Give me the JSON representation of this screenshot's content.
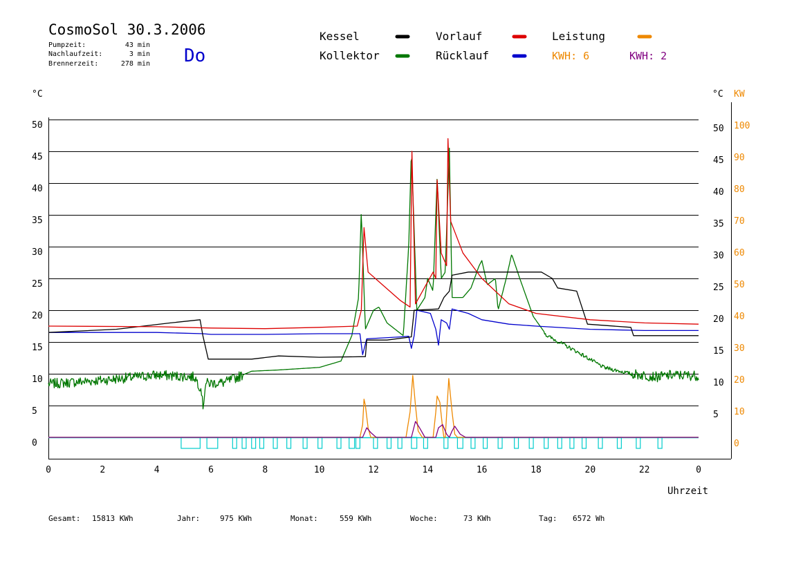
{
  "header": {
    "title": "CosmoSol 30.3.2006",
    "day": "Do",
    "stats": [
      {
        "label": "Pumpzeit:",
        "value": "43 min"
      },
      {
        "label": "Nachlaufzeit:",
        "value": "3 min"
      },
      {
        "label": "Brennerzeit:",
        "value": "278 min"
      }
    ]
  },
  "legend": {
    "kessel": "Kessel",
    "vorlauf": "Vorlauf",
    "leistung": "Leistung",
    "kollektor": "Kollektor",
    "ruecklauf": "Rücklauf",
    "kwh_orange": "KWH: 6",
    "kwh_purple": "KWH: 2"
  },
  "axes": {
    "y_left_unit": "°C",
    "y_right_unit": "°C",
    "y_right_unit2": "KW",
    "x_label": "Uhrzeit"
  },
  "footer": {
    "items": [
      {
        "label": "Gesamt:",
        "value": "15813 KWh"
      },
      {
        "label": "Jahr:",
        "value": "975 KWh"
      },
      {
        "label": "Monat:",
        "value": "559 KWh"
      },
      {
        "label": "Woche:",
        "value": "73 KWh"
      },
      {
        "label": "Tag:",
        "value": "6572 Wh"
      }
    ]
  },
  "colors": {
    "kessel": "#000000",
    "vorlauf": "#dd0000",
    "leistung": "#ee8800",
    "kollektor": "#007700",
    "ruecklauf": "#0000cc",
    "kwh_purple": "#800080",
    "pump": "#00cccc",
    "day": "#0000cc"
  },
  "chart_data": {
    "type": "line",
    "x_ticks": [
      "0",
      "2",
      "4",
      "6",
      "8",
      "10",
      "12",
      "14",
      "16",
      "18",
      "20",
      "22",
      "0"
    ],
    "xlim": [
      0,
      24
    ],
    "y_left_ticks": [
      "0",
      "5",
      "10",
      "15",
      "20",
      "25",
      "30",
      "35",
      "40",
      "45",
      "50"
    ],
    "y_right_ticks": [
      "5",
      "10",
      "15",
      "20",
      "25",
      "30",
      "35",
      "40",
      "45",
      "50"
    ],
    "y_right2_ticks": [
      "0",
      "10",
      "20",
      "30",
      "40",
      "50",
      "60",
      "70",
      "80",
      "90",
      "100"
    ],
    "ylim": [
      0,
      50
    ],
    "ylim_kw": [
      0,
      100
    ],
    "grid": true,
    "series": [
      {
        "name": "Kessel",
        "key": "kessel",
        "points": [
          [
            0,
            16.5
          ],
          [
            2.5,
            17
          ],
          [
            4.5,
            18
          ],
          [
            5.6,
            18.5
          ],
          [
            5.7,
            16
          ],
          [
            5.9,
            12.3
          ],
          [
            7.5,
            12.3
          ],
          [
            8.5,
            12.8
          ],
          [
            10,
            12.6
          ],
          [
            11.7,
            12.7
          ],
          [
            11.75,
            15.3
          ],
          [
            12.5,
            15.3
          ],
          [
            13.4,
            15.8
          ],
          [
            13.5,
            20
          ],
          [
            14.4,
            20.2
          ],
          [
            14.6,
            22
          ],
          [
            14.8,
            23
          ],
          [
            14.9,
            25.5
          ],
          [
            15.5,
            26
          ],
          [
            18.2,
            26
          ],
          [
            18.6,
            25
          ],
          [
            18.8,
            23.5
          ],
          [
            19.5,
            23
          ],
          [
            19.9,
            17.8
          ],
          [
            21.5,
            17.3
          ],
          [
            21.6,
            16
          ],
          [
            24,
            16
          ]
        ]
      },
      {
        "name": "Vorlauf",
        "key": "vorlauf",
        "points": [
          [
            0,
            17.5
          ],
          [
            4,
            17.4
          ],
          [
            6,
            17.2
          ],
          [
            8,
            17.1
          ],
          [
            10,
            17.3
          ],
          [
            11.4,
            17.5
          ],
          [
            11.55,
            20
          ],
          [
            11.65,
            33
          ],
          [
            11.8,
            26
          ],
          [
            12.2,
            24.5
          ],
          [
            13,
            21.5
          ],
          [
            13.35,
            20.5
          ],
          [
            13.42,
            45
          ],
          [
            13.55,
            21
          ],
          [
            14.2,
            26
          ],
          [
            14.3,
            25
          ],
          [
            14.35,
            40.5
          ],
          [
            14.5,
            29
          ],
          [
            14.7,
            27
          ],
          [
            14.75,
            47
          ],
          [
            14.85,
            34
          ],
          [
            15.3,
            29
          ],
          [
            16,
            25
          ],
          [
            17,
            21
          ],
          [
            18,
            19.5
          ],
          [
            20,
            18.5
          ],
          [
            22,
            18
          ],
          [
            24,
            17.8
          ]
        ]
      },
      {
        "name": "Kollektor",
        "key": "kollektor",
        "noise": true,
        "points": [
          [
            0,
            8.4
          ],
          [
            2,
            9
          ],
          [
            4,
            9.8
          ],
          [
            5.4,
            9.5
          ],
          [
            5.65,
            7.5
          ],
          [
            5.7,
            4.5
          ],
          [
            5.8,
            8.5
          ],
          [
            6.5,
            8.6
          ],
          [
            7.5,
            10.4
          ],
          [
            8.5,
            10.6
          ],
          [
            10,
            11
          ],
          [
            10.8,
            12
          ],
          [
            11.2,
            16
          ],
          [
            11.45,
            22
          ],
          [
            11.55,
            35.5
          ],
          [
            11.7,
            17
          ],
          [
            12,
            20
          ],
          [
            12.2,
            20.5
          ],
          [
            12.5,
            18
          ],
          [
            13.1,
            16
          ],
          [
            13.3,
            30
          ],
          [
            13.4,
            45.5
          ],
          [
            13.6,
            20
          ],
          [
            13.9,
            22
          ],
          [
            14,
            25
          ],
          [
            14.2,
            23
          ],
          [
            14.35,
            41
          ],
          [
            14.5,
            25
          ],
          [
            14.65,
            26
          ],
          [
            14.8,
            45.5
          ],
          [
            14.9,
            22
          ],
          [
            15.3,
            22
          ],
          [
            15.6,
            23.5
          ],
          [
            15.9,
            27
          ],
          [
            16,
            27.8
          ],
          [
            16.2,
            24
          ],
          [
            16.5,
            25
          ],
          [
            16.6,
            20
          ],
          [
            16.9,
            25
          ],
          [
            17.1,
            28.8
          ],
          [
            17.4,
            25
          ],
          [
            17.9,
            19
          ],
          [
            18.4,
            16
          ],
          [
            19.5,
            13.5
          ],
          [
            20.5,
            11
          ],
          [
            21.5,
            10
          ],
          [
            22.5,
            9.5
          ],
          [
            23,
            9.8
          ],
          [
            24,
            9.7
          ]
        ]
      },
      {
        "name": "Rücklauf",
        "key": "ruecklauf",
        "points": [
          [
            0,
            16.5
          ],
          [
            4,
            16.5
          ],
          [
            5.7,
            16.3
          ],
          [
            6,
            16.2
          ],
          [
            8,
            16.2
          ],
          [
            10,
            16.3
          ],
          [
            11.5,
            16.3
          ],
          [
            11.6,
            13
          ],
          [
            11.75,
            15.5
          ],
          [
            13,
            15.8
          ],
          [
            13.3,
            15.9
          ],
          [
            13.4,
            14
          ],
          [
            13.5,
            16
          ],
          [
            13.6,
            20
          ],
          [
            14.1,
            19.5
          ],
          [
            14.3,
            17
          ],
          [
            14.4,
            14.5
          ],
          [
            14.5,
            18.5
          ],
          [
            14.7,
            18
          ],
          [
            14.8,
            17
          ],
          [
            14.9,
            20.2
          ],
          [
            15.5,
            19.5
          ],
          [
            16,
            18.5
          ],
          [
            17,
            17.8
          ],
          [
            18,
            17.5
          ],
          [
            20,
            17
          ],
          [
            22,
            16.8
          ],
          [
            24,
            16.8
          ]
        ]
      },
      {
        "name": "Leistung",
        "key": "leistung",
        "unit": "KW",
        "points": [
          [
            0,
            0
          ],
          [
            11.5,
            0
          ],
          [
            11.6,
            4
          ],
          [
            11.65,
            12
          ],
          [
            11.7,
            10
          ],
          [
            11.8,
            3
          ],
          [
            11.9,
            0
          ],
          [
            13.2,
            0
          ],
          [
            13.35,
            8
          ],
          [
            13.45,
            19.5
          ],
          [
            13.55,
            10
          ],
          [
            13.65,
            2
          ],
          [
            13.8,
            0
          ],
          [
            14.2,
            0
          ],
          [
            14.3,
            8
          ],
          [
            14.35,
            13
          ],
          [
            14.45,
            11
          ],
          [
            14.55,
            3
          ],
          [
            14.6,
            0
          ],
          [
            14.65,
            0
          ],
          [
            14.72,
            10
          ],
          [
            14.78,
            18.5
          ],
          [
            14.9,
            8
          ],
          [
            15,
            1
          ],
          [
            15.1,
            0
          ],
          [
            24,
            0
          ]
        ]
      },
      {
        "name": "KWH",
        "key": "kwh_purple",
        "unit": "KW",
        "points": [
          [
            0,
            0
          ],
          [
            11.6,
            0
          ],
          [
            11.7,
            2
          ],
          [
            11.75,
            3
          ],
          [
            11.9,
            1.5
          ],
          [
            12.1,
            0
          ],
          [
            13.4,
            0
          ],
          [
            13.55,
            5
          ],
          [
            13.7,
            3
          ],
          [
            13.9,
            0
          ],
          [
            14.3,
            0
          ],
          [
            14.4,
            3
          ],
          [
            14.55,
            4
          ],
          [
            14.7,
            1
          ],
          [
            14.8,
            0
          ],
          [
            14.9,
            2
          ],
          [
            15,
            3.5
          ],
          [
            15.2,
            1
          ],
          [
            15.4,
            0
          ],
          [
            24,
            0
          ]
        ]
      }
    ],
    "pump_intervals": [
      [
        4.9,
        5.6
      ],
      [
        5.85,
        6.25
      ],
      [
        6.8,
        6.95
      ],
      [
        7.15,
        7.3
      ],
      [
        7.5,
        7.65
      ],
      [
        7.8,
        7.95
      ],
      [
        8.3,
        8.45
      ],
      [
        8.8,
        8.95
      ],
      [
        9.4,
        9.55
      ],
      [
        9.95,
        10.1
      ],
      [
        10.65,
        10.8
      ],
      [
        11.1,
        11.3
      ],
      [
        11.35,
        11.5
      ],
      [
        12.0,
        12.15
      ],
      [
        12.5,
        12.65
      ],
      [
        12.9,
        13.05
      ],
      [
        13.4,
        13.6
      ],
      [
        13.85,
        14.0
      ],
      [
        14.6,
        14.75
      ],
      [
        15.1,
        15.3
      ],
      [
        15.6,
        15.75
      ],
      [
        16.05,
        16.2
      ],
      [
        16.6,
        16.75
      ],
      [
        17.2,
        17.35
      ],
      [
        17.75,
        17.9
      ],
      [
        18.3,
        18.45
      ],
      [
        18.8,
        18.95
      ],
      [
        19.25,
        19.4
      ],
      [
        19.7,
        19.85
      ],
      [
        20.3,
        20.45
      ],
      [
        21.0,
        21.15
      ],
      [
        21.7,
        21.85
      ],
      [
        22.5,
        22.65
      ]
    ]
  }
}
